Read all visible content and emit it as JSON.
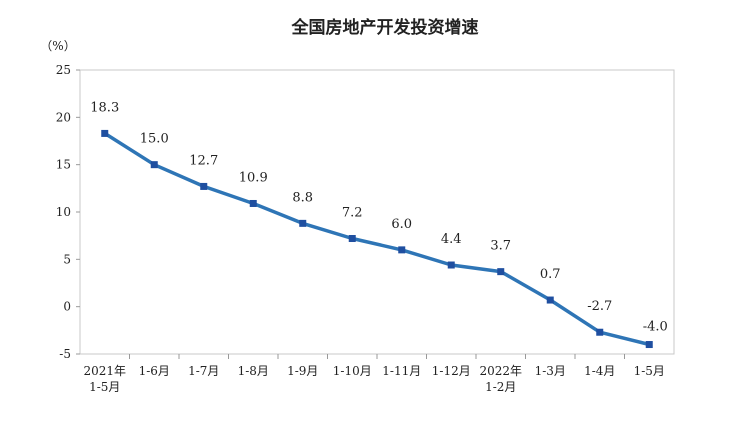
{
  "chart_data": {
    "type": "line",
    "title": "全国房地产开发投资增速",
    "ylabel": "",
    "unit_label": "（%）",
    "xlabel": "",
    "ylim": [
      -5,
      25
    ],
    "yticks": [
      -5,
      0,
      5,
      10,
      15,
      20,
      25
    ],
    "grid": false,
    "legend": "none",
    "line_color": "#2E75B6",
    "categories": [
      [
        "2021年",
        "1-5月"
      ],
      [
        "1-6月"
      ],
      [
        "1-7月"
      ],
      [
        "1-8月"
      ],
      [
        "1-9月"
      ],
      [
        "1-10月"
      ],
      [
        "1-11月"
      ],
      [
        "1-12月"
      ],
      [
        "2022年",
        "1-2月"
      ],
      [
        "1-3月"
      ],
      [
        "1-4月"
      ],
      [
        "1-5月"
      ]
    ],
    "series": [
      {
        "values": [
          18.3,
          15.0,
          12.7,
          10.9,
          8.8,
          7.2,
          6.0,
          4.4,
          3.7,
          0.7,
          -2.7,
          -4.0
        ],
        "labels": [
          "18.3",
          "15.0",
          "12.7",
          "10.9",
          "8.8",
          "7.2",
          "6.0",
          "4.4",
          "3.7",
          "0.7",
          "-2.7",
          "-4.0"
        ]
      }
    ]
  }
}
